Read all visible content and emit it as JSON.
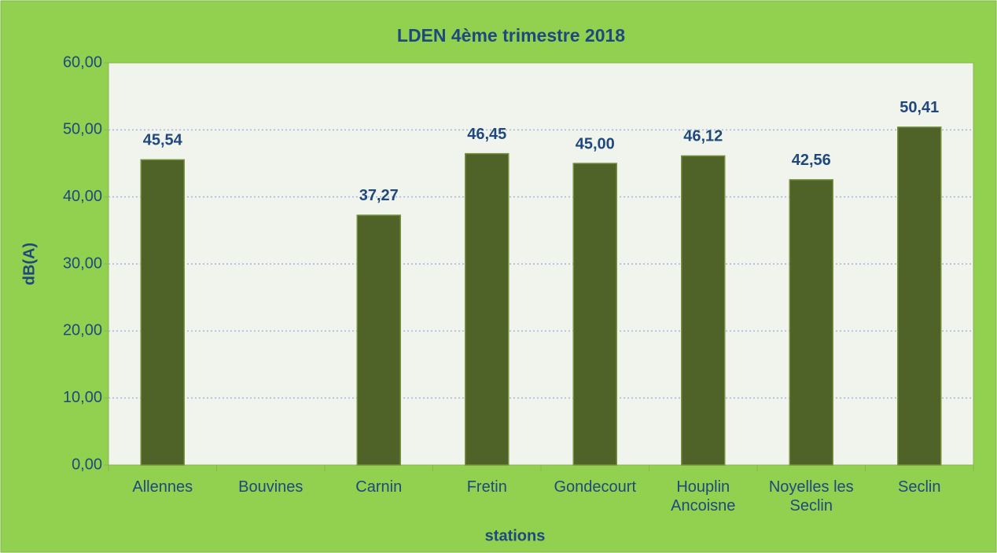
{
  "chart_data": {
    "type": "bar",
    "title": "LDEN 4ème trimestre 2018",
    "x_label": "stations",
    "y_label": "dB(A)",
    "categories": [
      "Allennes",
      "Bouvines",
      "Carnin",
      "Fretin",
      "Gondecourt",
      "Houplin Ancoisne",
      "Noyelles les Seclin",
      "Seclin"
    ],
    "values": [
      45.54,
      null,
      37.27,
      46.45,
      45.0,
      46.12,
      42.56,
      50.41
    ],
    "value_labels": [
      "45,54",
      null,
      "37,27",
      "46,45",
      "45,00",
      "46,12",
      "42,56",
      "50,41"
    ],
    "color": "#4f6228",
    "ylim": [
      0,
      60
    ],
    "yticks": [
      {
        "value": 0,
        "label": "0,00"
      },
      {
        "value": 10,
        "label": "10,00"
      },
      {
        "value": 20,
        "label": "20,00"
      },
      {
        "value": 30,
        "label": "30,00"
      },
      {
        "value": 40,
        "label": "40,00"
      },
      {
        "value": 50,
        "label": "50,00"
      },
      {
        "value": 60,
        "label": "60,00"
      }
    ],
    "grid": true
  }
}
